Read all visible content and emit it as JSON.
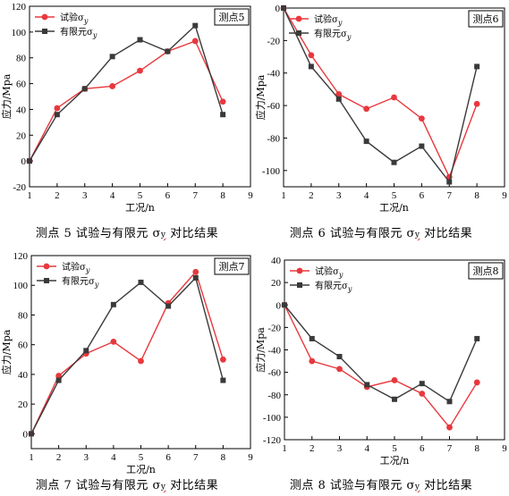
{
  "chart_data": [
    {
      "type": "line",
      "point_label": "测点5",
      "caption": "测点 5 试验与有限元 σ",
      "caption_sub": "y",
      "caption_tail": " 对比结果",
      "xlabel": "工况/n",
      "ylabel": "应力/Mpa",
      "xlim": [
        1,
        9
      ],
      "ylim": [
        -20,
        120
      ],
      "xticks": [
        1,
        2,
        3,
        4,
        5,
        6,
        7,
        8,
        9
      ],
      "yticks": [
        -20,
        0,
        20,
        40,
        60,
        80,
        100,
        120
      ],
      "legend_position": "top-left",
      "series": [
        {
          "name": "试验σ",
          "name_sub": "y",
          "color": "#e8383d",
          "marker": "circle",
          "x": [
            1,
            2,
            3,
            4,
            5,
            6,
            7,
            8
          ],
          "values": [
            0,
            41,
            56,
            58,
            70,
            85,
            93,
            46
          ]
        },
        {
          "name": "有限元σ",
          "name_sub": "y",
          "color": "#3a3a3a",
          "marker": "square",
          "x": [
            1,
            2,
            3,
            4,
            5,
            6,
            7,
            8
          ],
          "values": [
            0,
            36,
            56,
            81,
            94,
            85,
            105,
            36
          ]
        }
      ]
    },
    {
      "type": "line",
      "point_label": "测点6",
      "caption": "测点 6 试验与有限元 σ",
      "caption_sub": "y",
      "caption_tail": " 对比结果",
      "xlabel": "工况/n",
      "ylabel": "应力/Mpa",
      "xlim": [
        1,
        9
      ],
      "ylim": [
        -110,
        0
      ],
      "yaxis_top": 0,
      "xticks": [
        1,
        2,
        3,
        4,
        5,
        6,
        7,
        8,
        9
      ],
      "yticks": [
        -100,
        -80,
        -60,
        -40,
        -20,
        0
      ],
      "legend_position": "top-left",
      "series": [
        {
          "name": "试验σ",
          "name_sub": "y",
          "color": "#e8383d",
          "marker": "circle",
          "x": [
            1,
            2,
            3,
            4,
            5,
            6,
            7,
            8
          ],
          "values": [
            0,
            -29,
            -53,
            -62,
            -55,
            -68,
            -104,
            -59
          ]
        },
        {
          "name": "有限元σ",
          "name_sub": "y",
          "color": "#3a3a3a",
          "marker": "square",
          "x": [
            1,
            2,
            3,
            4,
            5,
            6,
            7,
            8
          ],
          "values": [
            0,
            -36,
            -56,
            -82,
            -95,
            -85,
            -107,
            -36
          ]
        }
      ]
    },
    {
      "type": "line",
      "point_label": "测点7",
      "caption": "测点 7 试验与有限元 σ",
      "caption_sub": "y",
      "caption_tail": " 对比结果",
      "xlabel": "工况/n",
      "ylabel": "应力/Mpa",
      "xlim": [
        1,
        9
      ],
      "ylim": [
        -10,
        120
      ],
      "xticks": [
        1,
        2,
        3,
        4,
        5,
        6,
        7,
        8,
        9
      ],
      "yticks": [
        0,
        20,
        40,
        60,
        80,
        100,
        120
      ],
      "legend_position": "top-left",
      "series": [
        {
          "name": "试验σ",
          "name_sub": "y",
          "color": "#e8383d",
          "marker": "circle",
          "x": [
            1,
            2,
            3,
            4,
            5,
            6,
            7,
            8
          ],
          "values": [
            0,
            39,
            54,
            62,
            49,
            88,
            109,
            50
          ]
        },
        {
          "name": "有限元σ",
          "name_sub": "y",
          "color": "#3a3a3a",
          "marker": "square",
          "x": [
            1,
            2,
            3,
            4,
            5,
            6,
            7,
            8
          ],
          "values": [
            0,
            36,
            56,
            87,
            102,
            86,
            105,
            36
          ]
        }
      ]
    },
    {
      "type": "line",
      "point_label": "测点8",
      "caption": "测点 8 试验与有限元 σ",
      "caption_sub": "y",
      "caption_tail": " 对比结果",
      "xlabel": "工况/n",
      "ylabel": "应力/Mpa",
      "xlim": [
        1,
        9
      ],
      "ylim": [
        -120,
        40
      ],
      "xticks": [
        1,
        2,
        3,
        4,
        5,
        6,
        7,
        8,
        9
      ],
      "yticks": [
        -120,
        -100,
        -80,
        -60,
        -40,
        -20,
        0,
        20,
        40
      ],
      "legend_position": "top-left",
      "series": [
        {
          "name": "试验σ",
          "name_sub": "y",
          "color": "#e8383d",
          "marker": "circle",
          "x": [
            1,
            2,
            3,
            4,
            5,
            6,
            7,
            8
          ],
          "values": [
            0,
            -50,
            -57,
            -73,
            -67,
            -79,
            -109,
            -69
          ]
        },
        {
          "name": "有限元σ",
          "name_sub": "y",
          "color": "#3a3a3a",
          "marker": "square",
          "x": [
            1,
            2,
            3,
            4,
            5,
            6,
            7,
            8
          ],
          "values": [
            0,
            -30,
            -46,
            -71,
            -84,
            -70,
            -86,
            -30
          ]
        }
      ]
    }
  ]
}
